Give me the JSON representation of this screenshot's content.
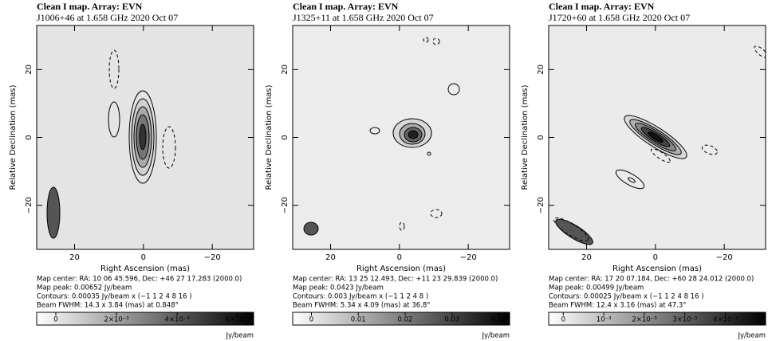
{
  "chart_data": [
    {
      "type": "contour",
      "title": "Clean I map.  Array:  EVN",
      "subtitle": "J1006+46 at 1.658 GHz 2020 Oct 07",
      "xlabel": "Right Ascension   (mas)",
      "ylabel": "Relative Declination   (mas)",
      "xlim": [
        31,
        -32
      ],
      "ylim": [
        -33,
        33
      ],
      "xticks": [
        20,
        0,
        {
          "value": -20,
          "label": "−20"
        }
      ],
      "yticks": [
        {
          "value": -20,
          "label": "−20"
        },
        0,
        20
      ],
      "captions": [
        "Map center:  RA: 10 06 45.596,  Dec: +46 27 17.283 (2000.0)",
        "Map peak: 0.00652 Jy/beam",
        "Contours: 0.00035 Jy/beam x (−1 1 2 4 8 16 )",
        "Beam FWHM: 14.3 x 3.84 (mas) at 0.848°"
      ],
      "colorbar": {
        "lim": [
          -0.00063,
          0.00652
        ],
        "ticks": [
          0,
          {
            "value": 0.002,
            "label": "2×10⁻³"
          },
          {
            "value": 0.004,
            "label": "4×10⁻³"
          },
          {
            "value": 0.006,
            "label": "6×10⁻³"
          }
        ],
        "label": "Jy/beam"
      }
    },
    {
      "type": "contour",
      "title": "Clean I map.  Array:  EVN",
      "subtitle": "J1325+11 at 1.658 GHz 2020 Oct 07",
      "xlabel": "Right Ascension   (mas)",
      "ylabel": "Relative Declination   (mas)",
      "xlim": [
        31,
        -32
      ],
      "ylim": [
        -33,
        33
      ],
      "xticks": [
        20,
        0,
        {
          "value": -20,
          "label": "−20"
        }
      ],
      "yticks": [
        {
          "value": -20,
          "label": "−20"
        },
        0,
        20
      ],
      "captions": [
        "Map center:  RA: 13 25 12.493,  Dec: +11 23 29.839 (2000.0)",
        "Map peak: 0.0423 Jy/beam",
        "Contours: 0.003 Jy/beam x (−1 1 2 4 8 )",
        "Beam FWHM: 5.34 x 4.09 (mas) at 36.8°"
      ],
      "colorbar": {
        "lim": [
          -0.004,
          0.0423
        ],
        "ticks": [
          0,
          0.01,
          0.02,
          0.03,
          0.04
        ],
        "label": "Jy/beam"
      }
    },
    {
      "type": "contour",
      "title": "Clean I map.  Array:  EVN",
      "subtitle": "J1720+60 at 1.658 GHz 2020 Oct 07",
      "xlabel": "Right Ascension   (mas)",
      "ylabel": "Relative Declination   (mas)",
      "xlim": [
        31,
        -32
      ],
      "ylim": [
        -33,
        33
      ],
      "xticks": [
        20,
        0,
        {
          "value": -20,
          "label": "−20"
        }
      ],
      "yticks": [
        {
          "value": -20,
          "label": "−20"
        },
        0,
        20
      ],
      "captions": [
        "Map center:  RA: 17 20 07.184,  Dec: +60 28 24.012 (2000.0)",
        "Map peak: 0.00499 Jy/beam",
        "Contours: 0.00025 Jy/beam x (−1 1 2 4 8 16 )",
        "Beam FWHM: 12.4 x 3.16 (mas) at 47.3°"
      ],
      "colorbar": {
        "lim": [
          -0.00036,
          0.00499
        ],
        "ticks": [
          0,
          {
            "value": 0.001,
            "label": "10⁻³"
          },
          {
            "value": 0.002,
            "label": "2×10⁻³"
          },
          {
            "value": 0.003,
            "label": "3×10⁻³"
          },
          {
            "value": 0.004,
            "label": "4×10⁻³"
          }
        ],
        "label": "Jy/beam"
      }
    }
  ]
}
